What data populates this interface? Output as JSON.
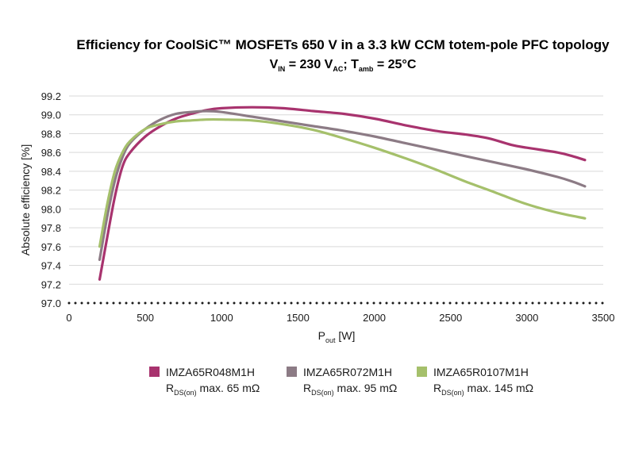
{
  "chart_data": {
    "type": "line",
    "title": "Efficiency for CoolSiC™ MOSFETs 650 V in a 3.3 kW CCM totem-pole PFC topology",
    "subtitle": {
      "vin_main": "V",
      "vin_sub": "IN",
      "vin_eq": " = 230 V",
      "vin_unit_sub": "AC",
      "sep": "; T",
      "t_sub": "amb",
      "t_eq": " = 25°C"
    },
    "xlabel": {
      "main": "P",
      "sub": "out",
      "unit": " [W]"
    },
    "ylabel": "Absolute efficiency [%]",
    "xlim": [
      0,
      3500
    ],
    "ylim": [
      97.0,
      99.2
    ],
    "x_ticks": [
      "0",
      "500",
      "1000",
      "1500",
      "2000",
      "2500",
      "3000",
      "3500"
    ],
    "y_ticks": [
      "97.0",
      "97.2",
      "97.4",
      "97.6",
      "97.8",
      "98.0",
      "98.2",
      "98.4",
      "98.6",
      "98.8",
      "99.0",
      "99.2"
    ],
    "grid": true,
    "legend_position": "bottom",
    "series": [
      {
        "name": "IMZA65R048M1H",
        "rds_main": "R",
        "rds_sub": "DS(on)",
        "rds_text": " max. 65 mΩ",
        "color": "#a8336e",
        "x": [
          200,
          250,
          300,
          350,
          400,
          500,
          600,
          700,
          800,
          900,
          1000,
          1200,
          1400,
          1600,
          1800,
          2000,
          2200,
          2400,
          2600,
          2750,
          2900,
          3000,
          3200,
          3300,
          3380
        ],
        "y": [
          97.25,
          97.7,
          98.13,
          98.45,
          98.6,
          98.77,
          98.88,
          98.96,
          99.01,
          99.05,
          99.07,
          99.08,
          99.07,
          99.04,
          99.01,
          98.96,
          98.89,
          98.83,
          98.79,
          98.75,
          98.68,
          98.65,
          98.6,
          98.56,
          98.52
        ]
      },
      {
        "name": "IMZA65R072M1H",
        "rds_main": "R",
        "rds_sub": "DS(on)",
        "rds_text": " max. 95 mΩ",
        "color": "#8c7b85",
        "x": [
          200,
          250,
          300,
          350,
          400,
          500,
          600,
          700,
          800,
          900,
          1000,
          1200,
          1400,
          1600,
          1800,
          2000,
          2200,
          2400,
          2600,
          2800,
          3000,
          3200,
          3300,
          3380
        ],
        "y": [
          97.46,
          97.92,
          98.3,
          98.55,
          98.7,
          98.85,
          98.95,
          99.01,
          99.03,
          99.04,
          99.03,
          98.98,
          98.93,
          98.88,
          98.83,
          98.77,
          98.7,
          98.63,
          98.56,
          98.49,
          98.42,
          98.34,
          98.29,
          98.24
        ]
      },
      {
        "name": "IMZA65R0107M1H",
        "rds_main": "R",
        "rds_sub": "DS(on)",
        "rds_text": " max. 145 mΩ",
        "color": "#a5c06b",
        "x": [
          200,
          250,
          300,
          350,
          400,
          500,
          600,
          700,
          800,
          900,
          1000,
          1200,
          1400,
          1600,
          1800,
          2000,
          2200,
          2400,
          2600,
          2800,
          3000,
          3200,
          3380
        ],
        "y": [
          97.6,
          98.05,
          98.4,
          98.6,
          98.72,
          98.85,
          98.9,
          98.93,
          98.94,
          98.95,
          98.95,
          98.94,
          98.9,
          98.84,
          98.75,
          98.65,
          98.54,
          98.42,
          98.29,
          98.17,
          98.05,
          97.96,
          97.9
        ]
      }
    ]
  }
}
